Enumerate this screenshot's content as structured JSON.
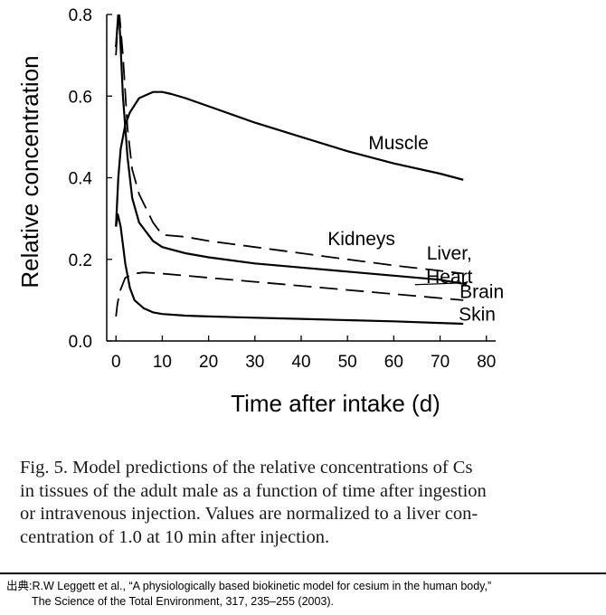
{
  "chart_data": {
    "type": "line",
    "xlabel": "Time after intake (d)",
    "ylabel": "Relative concentration",
    "xlim": [
      -2,
      82
    ],
    "ylim": [
      0,
      0.8
    ],
    "xticks": [
      0,
      10,
      20,
      30,
      40,
      50,
      60,
      70,
      80
    ],
    "yticks": [
      "0.0",
      "0.2",
      "0.4",
      "0.6",
      "0.8"
    ],
    "grid": false,
    "series": [
      {
        "name": "Muscle",
        "style": "solid",
        "label_at": [
          61,
          0.47
        ],
        "points": [
          [
            0,
            0.28
          ],
          [
            0.5,
            0.4
          ],
          [
            1,
            0.47
          ],
          [
            2,
            0.53
          ],
          [
            3,
            0.56
          ],
          [
            5,
            0.595
          ],
          [
            8,
            0.61
          ],
          [
            10,
            0.61
          ],
          [
            12,
            0.605
          ],
          [
            15,
            0.595
          ],
          [
            20,
            0.575
          ],
          [
            30,
            0.535
          ],
          [
            40,
            0.5
          ],
          [
            50,
            0.465
          ],
          [
            60,
            0.435
          ],
          [
            70,
            0.41
          ],
          [
            75,
            0.395
          ]
        ]
      },
      {
        "name": "Kidneys",
        "style": "dashed",
        "label_at": [
          53,
          0.235
        ],
        "points": [
          [
            0,
            0.7
          ],
          [
            0.6,
            0.82
          ],
          [
            1.5,
            0.7
          ],
          [
            2.5,
            0.52
          ],
          [
            3.5,
            0.42
          ],
          [
            5,
            0.36
          ],
          [
            8,
            0.29
          ],
          [
            10,
            0.26
          ],
          [
            15,
            0.255
          ],
          [
            20,
            0.245
          ],
          [
            30,
            0.23
          ],
          [
            40,
            0.215
          ],
          [
            50,
            0.2
          ],
          [
            60,
            0.185
          ],
          [
            70,
            0.172
          ],
          [
            75,
            0.165
          ]
        ]
      },
      {
        "name": "Liver, Heart",
        "style": "solid",
        "label_at": [
          72,
          0.2
        ],
        "label_lines": [
          "Liver,",
          "Heart"
        ],
        "points": [
          [
            0,
            0.72
          ],
          [
            0.6,
            0.82
          ],
          [
            1.5,
            0.6
          ],
          [
            2.5,
            0.45
          ],
          [
            3.5,
            0.35
          ],
          [
            5,
            0.29
          ],
          [
            8,
            0.245
          ],
          [
            10,
            0.23
          ],
          [
            15,
            0.215
          ],
          [
            20,
            0.205
          ],
          [
            30,
            0.19
          ],
          [
            40,
            0.18
          ],
          [
            50,
            0.17
          ],
          [
            60,
            0.16
          ],
          [
            70,
            0.15
          ],
          [
            75,
            0.14
          ]
        ]
      },
      {
        "name": "Brain",
        "style": "dashed",
        "label_at": [
          79,
          0.105
        ],
        "points": [
          [
            0,
            0.06
          ],
          [
            0.3,
            0.09
          ],
          [
            0.8,
            0.12
          ],
          [
            2,
            0.155
          ],
          [
            4,
            0.165
          ],
          [
            6,
            0.168
          ],
          [
            10,
            0.165
          ],
          [
            20,
            0.155
          ],
          [
            30,
            0.145
          ],
          [
            40,
            0.135
          ],
          [
            50,
            0.125
          ],
          [
            60,
            0.115
          ],
          [
            70,
            0.105
          ],
          [
            75,
            0.1
          ]
        ]
      },
      {
        "name": "Skin",
        "style": "solid",
        "label_at": [
          78,
          0.05
        ],
        "points": [
          [
            0,
            0.28
          ],
          [
            0.4,
            0.31
          ],
          [
            1,
            0.28
          ],
          [
            2,
            0.19
          ],
          [
            3,
            0.13
          ],
          [
            4,
            0.1
          ],
          [
            6,
            0.08
          ],
          [
            8,
            0.07
          ],
          [
            10,
            0.066
          ],
          [
            15,
            0.062
          ],
          [
            20,
            0.06
          ],
          [
            30,
            0.057
          ],
          [
            40,
            0.054
          ],
          [
            50,
            0.051
          ],
          [
            60,
            0.048
          ],
          [
            70,
            0.044
          ],
          [
            75,
            0.042
          ]
        ]
      }
    ]
  },
  "caption": {
    "lines": [
      "Fig. 5. Model predictions of the relative concentrations of Cs",
      "in tissues of the adult male as a function of time after ingestion",
      "or intravenous injection. Values are normalized to a liver con-",
      "centration of 1.0 at 10 min after injection."
    ]
  },
  "source": {
    "line1": "出典:R.W Leggett et al., “A physiologically based biokinetic model for cesium in the human body,”",
    "line2": "The Science of the Total Environment, 317, 235–255 (2003)."
  }
}
